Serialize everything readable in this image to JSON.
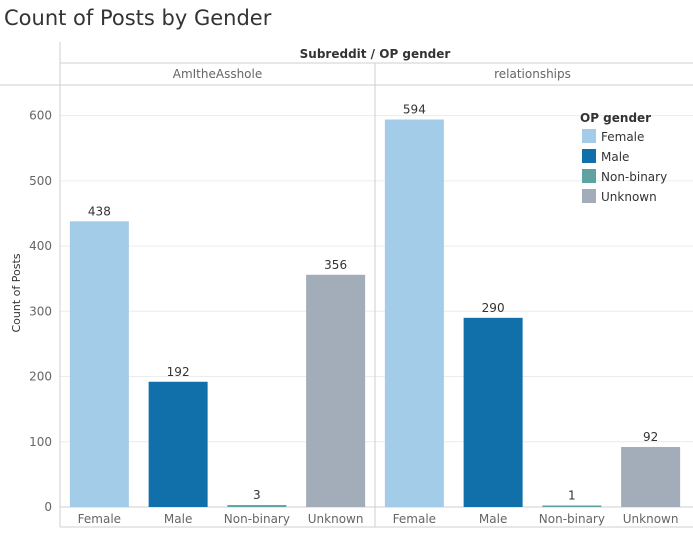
{
  "chart_data": {
    "type": "bar",
    "title": "Count of Posts by Gender",
    "header": "Subreddit  /  OP gender",
    "ylabel": "Count of Posts",
    "ylim": [
      0,
      650
    ],
    "yticks": [
      0,
      100,
      200,
      300,
      400,
      500,
      600
    ],
    "legend": {
      "title": "OP gender",
      "placement": "top-right",
      "items": [
        "Female",
        "Male",
        "Non-binary",
        "Unknown"
      ]
    },
    "colors": {
      "Female": "#a3cce9",
      "Male": "#1170aa",
      "Non-binary": "#5fa2a2",
      "Unknown": "#a3acb9"
    },
    "categories": [
      "Female",
      "Male",
      "Non-binary",
      "Unknown"
    ],
    "panels": [
      {
        "subreddit": "AmItheAsshole",
        "values": [
          438,
          192,
          3,
          356
        ]
      },
      {
        "subreddit": "relationships",
        "values": [
          594,
          290,
          1,
          92
        ]
      }
    ]
  }
}
